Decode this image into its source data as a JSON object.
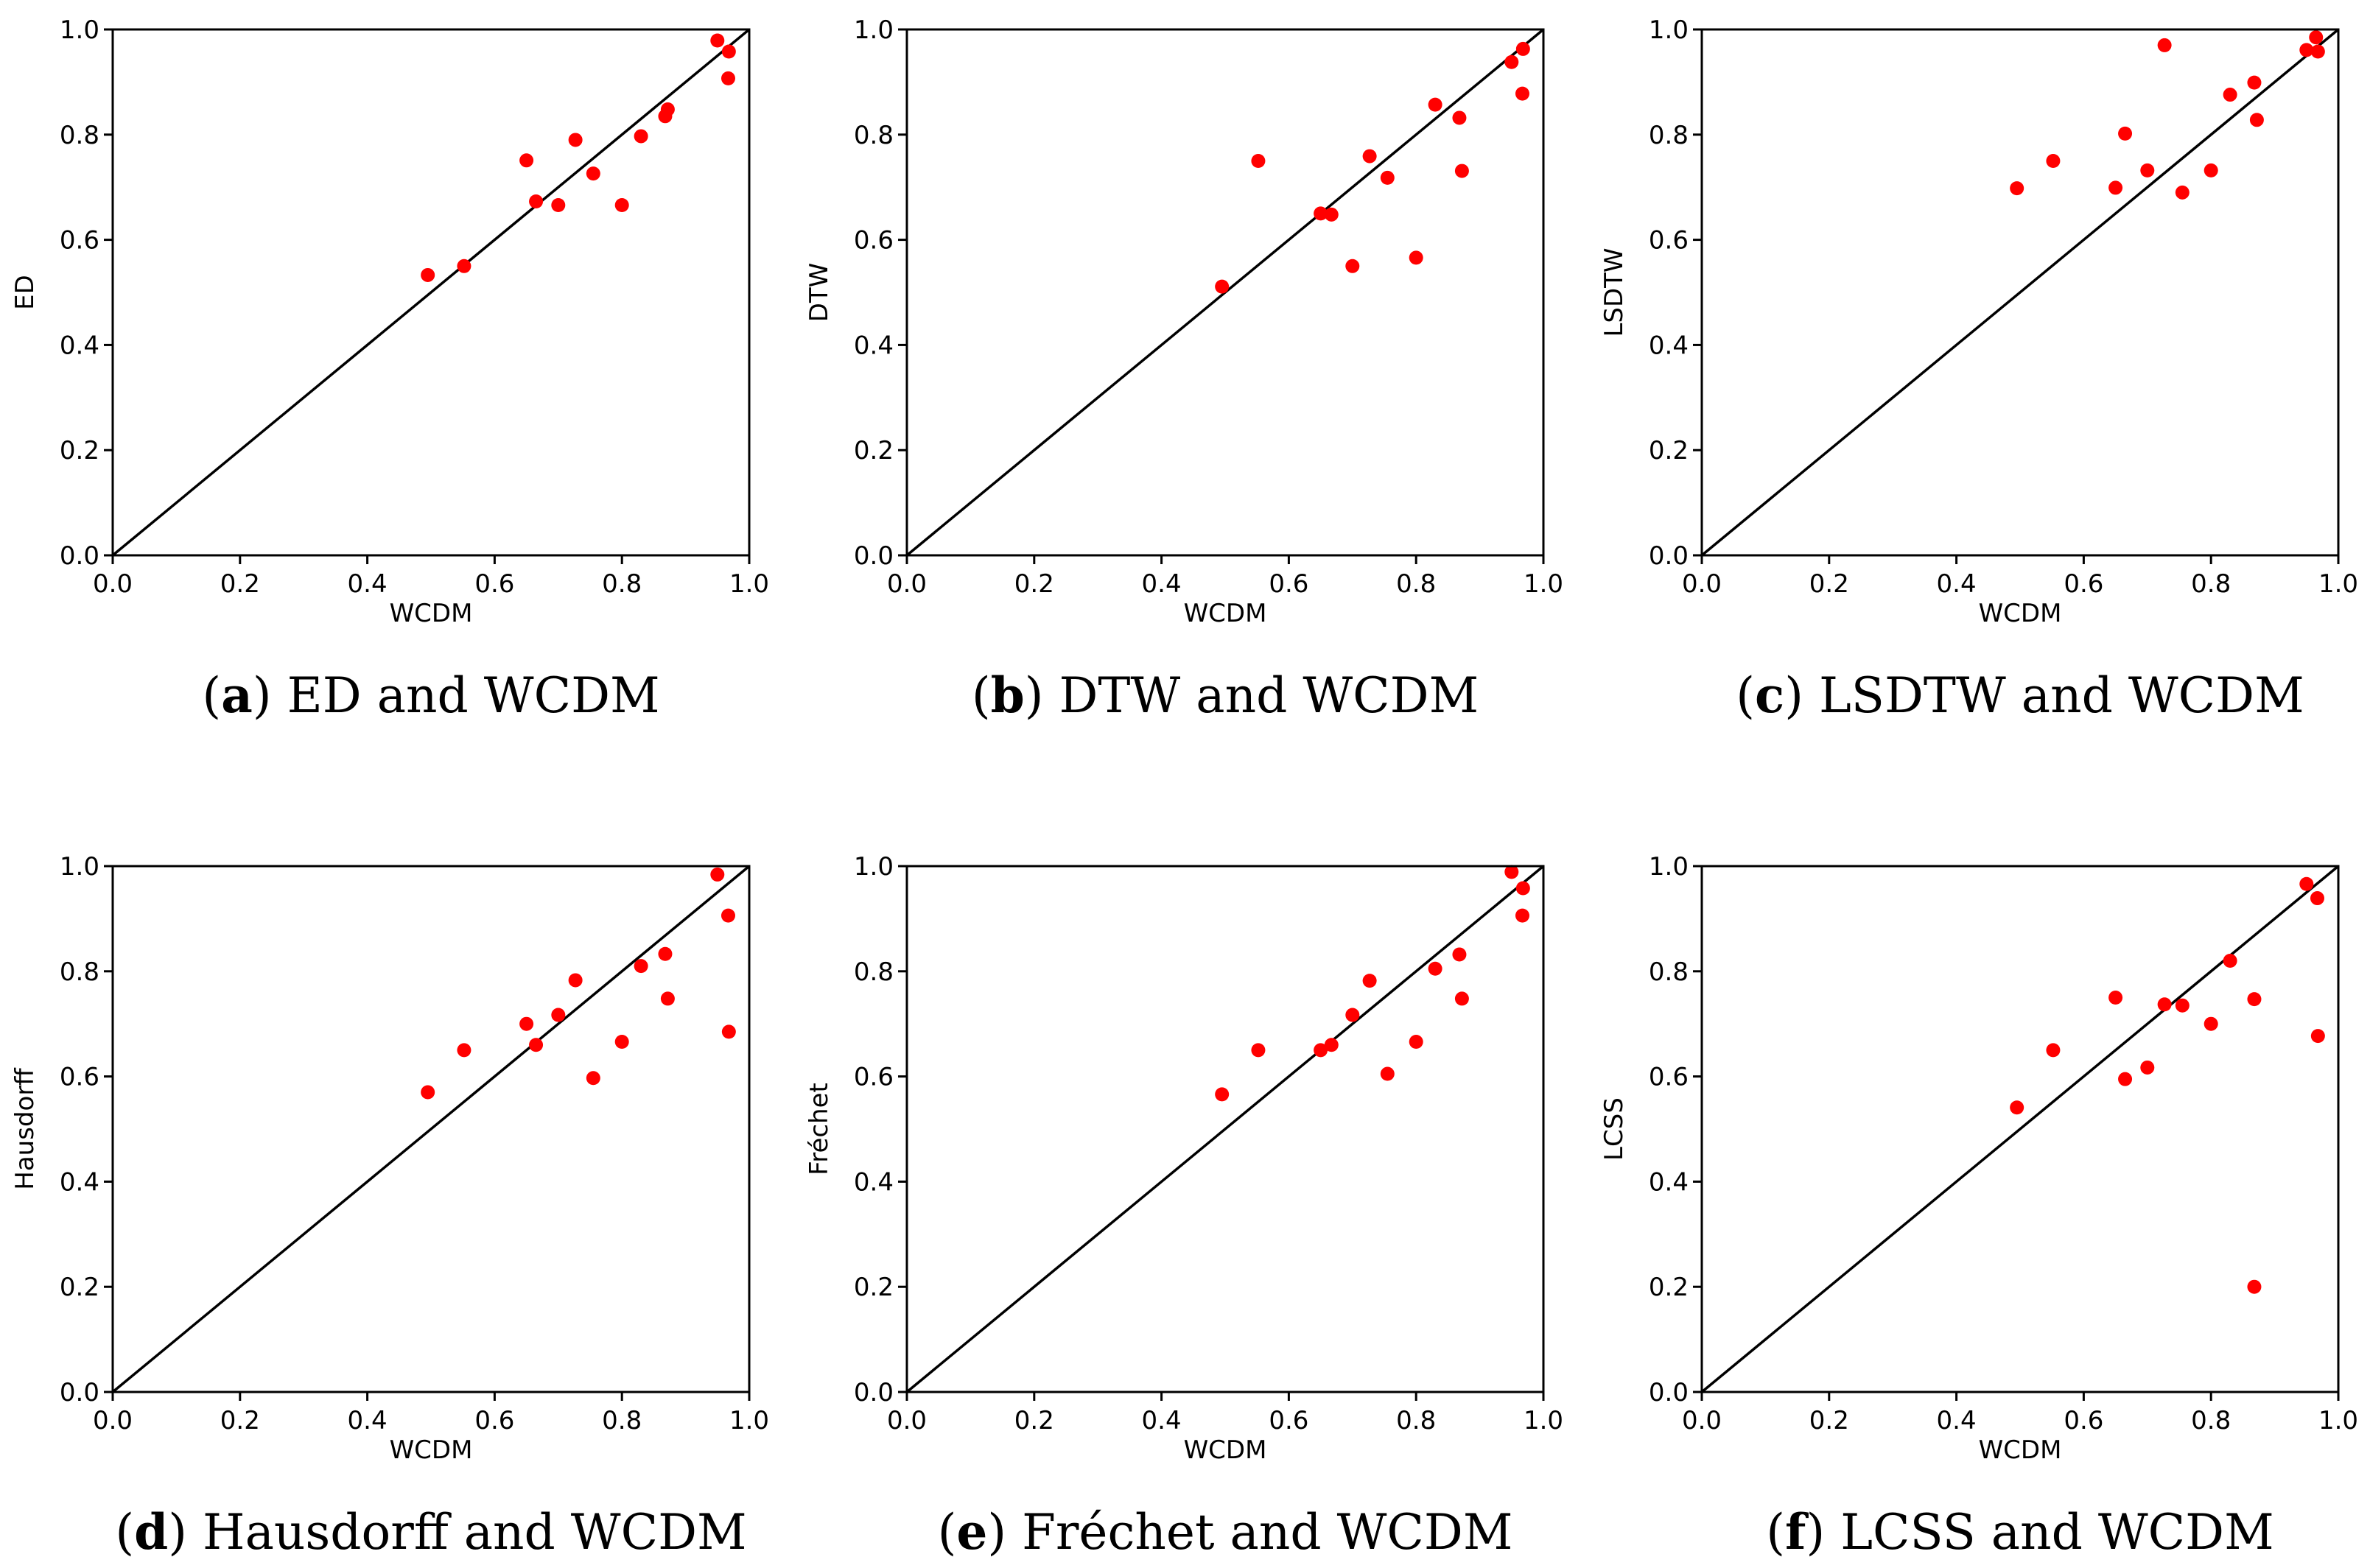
{
  "figure": {
    "point_color": "#ff0000",
    "line_color": "#000000"
  },
  "chart_data": [
    {
      "type": "scatter",
      "letter": "a",
      "caption": "ED and WCDM",
      "xlabel": "WCDM",
      "ylabel": "ED",
      "xlim": [
        0,
        1
      ],
      "ylim": [
        0,
        1
      ],
      "ticks": [
        "0.0",
        "0.2",
        "0.4",
        "0.6",
        "0.8",
        "1.0"
      ],
      "reference_line": "y = x",
      "points": [
        [
          0.495,
          0.533
        ],
        [
          0.552,
          0.55
        ],
        [
          0.65,
          0.751
        ],
        [
          0.665,
          0.673
        ],
        [
          0.7,
          0.666
        ],
        [
          0.727,
          0.79
        ],
        [
          0.755,
          0.726
        ],
        [
          0.8,
          0.666
        ],
        [
          0.83,
          0.797
        ],
        [
          0.868,
          0.835
        ],
        [
          0.872,
          0.848
        ],
        [
          0.95,
          0.979
        ],
        [
          0.967,
          0.907
        ],
        [
          0.968,
          0.958
        ]
      ]
    },
    {
      "type": "scatter",
      "letter": "b",
      "caption": "DTW and WCDM",
      "xlabel": "WCDM",
      "ylabel": "DTW",
      "xlim": [
        0,
        1
      ],
      "ylim": [
        0,
        1
      ],
      "ticks": [
        "0.0",
        "0.2",
        "0.4",
        "0.6",
        "0.8",
        "1.0"
      ],
      "reference_line": "y = x",
      "points": [
        [
          0.495,
          0.511
        ],
        [
          0.552,
          0.75
        ],
        [
          0.65,
          0.65
        ],
        [
          0.667,
          0.648
        ],
        [
          0.7,
          0.55
        ],
        [
          0.727,
          0.759
        ],
        [
          0.755,
          0.718
        ],
        [
          0.8,
          0.566
        ],
        [
          0.83,
          0.857
        ],
        [
          0.868,
          0.832
        ],
        [
          0.872,
          0.731
        ],
        [
          0.95,
          0.938
        ],
        [
          0.967,
          0.878
        ],
        [
          0.968,
          0.963
        ]
      ]
    },
    {
      "type": "scatter",
      "letter": "c",
      "caption": "LSDTW and WCDM",
      "xlabel": "WCDM",
      "ylabel": "LSDTW",
      "xlim": [
        0,
        1
      ],
      "ylim": [
        0,
        1
      ],
      "ticks": [
        "0.0",
        "0.2",
        "0.4",
        "0.6",
        "0.8",
        "1.0"
      ],
      "reference_line": "y = x",
      "points": [
        [
          0.495,
          0.698
        ],
        [
          0.552,
          0.75
        ],
        [
          0.65,
          0.699
        ],
        [
          0.665,
          0.802
        ],
        [
          0.7,
          0.732
        ],
        [
          0.727,
          0.97
        ],
        [
          0.755,
          0.69
        ],
        [
          0.8,
          0.732
        ],
        [
          0.83,
          0.876
        ],
        [
          0.868,
          0.899
        ],
        [
          0.872,
          0.828
        ],
        [
          0.95,
          0.961
        ],
        [
          0.965,
          0.985
        ],
        [
          0.968,
          0.958
        ]
      ]
    },
    {
      "type": "scatter",
      "letter": "d",
      "caption": "Hausdorff and WCDM",
      "xlabel": "WCDM",
      "ylabel": "Hausdorff",
      "xlim": [
        0,
        1
      ],
      "ylim": [
        0,
        1
      ],
      "ticks": [
        "0.0",
        "0.2",
        "0.4",
        "0.6",
        "0.8",
        "1.0"
      ],
      "reference_line": "y = x",
      "points": [
        [
          0.495,
          0.57
        ],
        [
          0.552,
          0.65
        ],
        [
          0.65,
          0.7
        ],
        [
          0.665,
          0.66
        ],
        [
          0.7,
          0.717
        ],
        [
          0.727,
          0.783
        ],
        [
          0.755,
          0.597
        ],
        [
          0.8,
          0.666
        ],
        [
          0.83,
          0.81
        ],
        [
          0.868,
          0.833
        ],
        [
          0.872,
          0.748
        ],
        [
          0.95,
          0.984
        ],
        [
          0.967,
          0.906
        ],
        [
          0.968,
          0.685
        ]
      ]
    },
    {
      "type": "scatter",
      "letter": "e",
      "caption": "Fréchet and WCDM",
      "xlabel": "WCDM",
      "ylabel": "Fréchet",
      "xlim": [
        0,
        1
      ],
      "ylim": [
        0,
        1
      ],
      "ticks": [
        "0.0",
        "0.2",
        "0.4",
        "0.6",
        "0.8",
        "1.0"
      ],
      "reference_line": "y = x",
      "points": [
        [
          0.495,
          0.566
        ],
        [
          0.552,
          0.65
        ],
        [
          0.65,
          0.65
        ],
        [
          0.667,
          0.66
        ],
        [
          0.7,
          0.717
        ],
        [
          0.727,
          0.782
        ],
        [
          0.755,
          0.605
        ],
        [
          0.8,
          0.666
        ],
        [
          0.83,
          0.805
        ],
        [
          0.868,
          0.832
        ],
        [
          0.872,
          0.748
        ],
        [
          0.95,
          0.989
        ],
        [
          0.967,
          0.906
        ],
        [
          0.968,
          0.958
        ]
      ]
    },
    {
      "type": "scatter",
      "letter": "f",
      "caption": "LCSS and WCDM",
      "xlabel": "WCDM",
      "ylabel": "LCSS",
      "xlim": [
        0,
        1
      ],
      "ylim": [
        0,
        1
      ],
      "ticks": [
        "0.0",
        "0.2",
        "0.4",
        "0.6",
        "0.8",
        "1.0"
      ],
      "reference_line": "y = x",
      "points": [
        [
          0.495,
          0.541
        ],
        [
          0.552,
          0.65
        ],
        [
          0.65,
          0.75
        ],
        [
          0.665,
          0.595
        ],
        [
          0.7,
          0.617
        ],
        [
          0.727,
          0.737
        ],
        [
          0.755,
          0.735
        ],
        [
          0.8,
          0.7
        ],
        [
          0.83,
          0.82
        ],
        [
          0.868,
          0.747
        ],
        [
          0.868,
          0.2
        ],
        [
          0.95,
          0.966
        ],
        [
          0.967,
          0.939
        ],
        [
          0.968,
          0.677
        ]
      ]
    }
  ]
}
